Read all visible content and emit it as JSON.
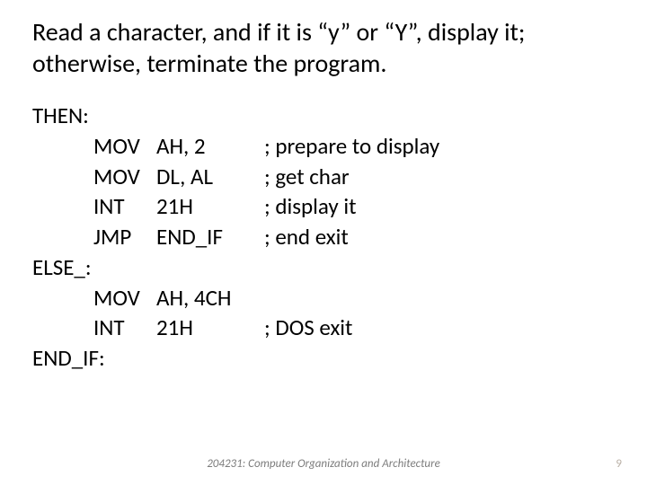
{
  "title": "Read a character, and if it is “y” or “Y”, display it; otherwise, terminate the program.",
  "code": {
    "labels": {
      "then": "THEN:",
      "else": "ELSE_:",
      "endif": "END_IF:"
    },
    "lines": [
      {
        "op": "MOV",
        "arg": "AH, 2",
        "comment": "; prepare to display"
      },
      {
        "op": "MOV",
        "arg": "DL, AL",
        "comment": "; get char"
      },
      {
        "op": "INT",
        "arg": "21H",
        "comment": "; display it"
      },
      {
        "op": "JMP",
        "arg": "END_IF",
        "comment": "; end exit"
      },
      {
        "op": "MOV",
        "arg": "AH, 4CH",
        "comment": ""
      },
      {
        "op": "INT",
        "arg": "21H",
        "comment": "; DOS exit"
      }
    ]
  },
  "footer": "204231: Computer Organization and Architecture",
  "pagenum": "9",
  "colors": {
    "text": "#000000",
    "footer": "#7d7d7d",
    "pagenum": "#b9b0a6",
    "background": "#ffffff"
  },
  "typography": {
    "title_fontsize": 28,
    "code_fontsize": 25,
    "footer_fontsize": 13,
    "font_family": "Calibri"
  }
}
